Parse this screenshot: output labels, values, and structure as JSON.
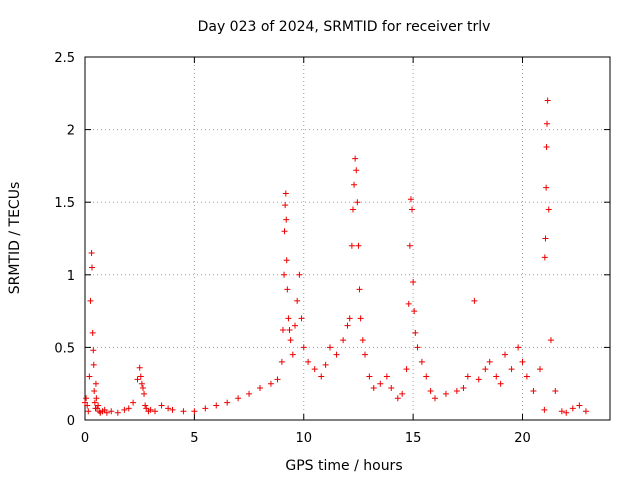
{
  "chart_data": {
    "type": "scatter",
    "title": "Day 023 of 2024, SRMTID for receiver trlv",
    "xlabel": "GPS time / hours",
    "ylabel": "SRMTID / TECUs",
    "xlim": [
      0,
      24
    ],
    "ylim": [
      0,
      2.5
    ],
    "xticks": [
      0,
      5,
      10,
      15,
      20
    ],
    "xtick_labels": [
      "0",
      "5",
      "10",
      "15",
      "20"
    ],
    "yticks": [
      0,
      0.5,
      1,
      1.5,
      2,
      2.5
    ],
    "ytick_labels": [
      "0",
      "0.5",
      "1",
      "1.5",
      "2",
      "2.5"
    ],
    "grid": true,
    "marker": "+",
    "color": "#ee0000",
    "series": [
      {
        "name": "SRMTID",
        "x": [
          0.0,
          0.05,
          0.1,
          0.15,
          0.2,
          0.25,
          0.3,
          0.32,
          0.35,
          0.38,
          0.4,
          0.42,
          0.45,
          0.48,
          0.5,
          0.52,
          0.55,
          0.6,
          0.65,
          0.7,
          0.8,
          0.9,
          1.0,
          1.2,
          1.5,
          1.8,
          2.0,
          2.2,
          2.4,
          2.5,
          2.55,
          2.6,
          2.65,
          2.7,
          2.75,
          2.8,
          2.9,
          3.0,
          3.2,
          3.5,
          3.8,
          4.0,
          4.5,
          5.0,
          5.5,
          6.0,
          6.5,
          7.0,
          7.5,
          8.0,
          8.5,
          8.8,
          9.0,
          9.05,
          9.1,
          9.12,
          9.15,
          9.18,
          9.2,
          9.22,
          9.25,
          9.3,
          9.35,
          9.4,
          9.5,
          9.6,
          9.7,
          9.8,
          9.9,
          10.0,
          10.2,
          10.5,
          10.8,
          11.0,
          11.2,
          11.5,
          11.8,
          12.0,
          12.1,
          12.2,
          12.25,
          12.3,
          12.35,
          12.4,
          12.45,
          12.5,
          12.55,
          12.6,
          12.7,
          12.8,
          13.0,
          13.2,
          13.5,
          13.8,
          14.0,
          14.3,
          14.5,
          14.7,
          14.8,
          14.85,
          14.9,
          14.95,
          15.0,
          15.05,
          15.1,
          15.2,
          15.4,
          15.6,
          15.8,
          16.0,
          16.5,
          17.0,
          17.3,
          17.5,
          17.8,
          18.0,
          18.3,
          18.5,
          18.8,
          19.0,
          19.2,
          19.5,
          19.8,
          20.0,
          20.2,
          20.5,
          20.8,
          21.0,
          21.02,
          21.05,
          21.08,
          21.1,
          21.12,
          21.15,
          21.2,
          21.3,
          21.5,
          21.8,
          22.0,
          22.3,
          22.6,
          22.9
        ],
        "y": [
          0.12,
          0.15,
          0.1,
          0.06,
          0.3,
          0.82,
          1.15,
          1.05,
          0.6,
          0.48,
          0.38,
          0.2,
          0.12,
          0.08,
          0.25,
          0.15,
          0.08,
          0.1,
          0.06,
          0.05,
          0.06,
          0.07,
          0.05,
          0.06,
          0.05,
          0.07,
          0.08,
          0.12,
          0.28,
          0.36,
          0.3,
          0.25,
          0.22,
          0.18,
          0.1,
          0.08,
          0.06,
          0.07,
          0.06,
          0.1,
          0.08,
          0.07,
          0.06,
          0.06,
          0.08,
          0.1,
          0.12,
          0.15,
          0.18,
          0.22,
          0.25,
          0.28,
          0.4,
          0.62,
          1.0,
          1.3,
          1.48,
          1.56,
          1.38,
          1.1,
          0.9,
          0.7,
          0.62,
          0.55,
          0.45,
          0.65,
          0.82,
          1.0,
          0.7,
          0.5,
          0.4,
          0.35,
          0.3,
          0.38,
          0.5,
          0.45,
          0.55,
          0.65,
          0.7,
          1.2,
          1.45,
          1.62,
          1.8,
          1.72,
          1.5,
          1.2,
          0.9,
          0.7,
          0.55,
          0.45,
          0.3,
          0.22,
          0.25,
          0.3,
          0.22,
          0.15,
          0.18,
          0.35,
          0.8,
          1.2,
          1.52,
          1.45,
          0.95,
          0.75,
          0.6,
          0.5,
          0.4,
          0.3,
          0.2,
          0.15,
          0.18,
          0.2,
          0.22,
          0.3,
          0.82,
          0.28,
          0.35,
          0.4,
          0.3,
          0.25,
          0.45,
          0.35,
          0.5,
          0.4,
          0.3,
          0.2,
          0.35,
          0.07,
          1.12,
          1.25,
          1.6,
          1.88,
          2.04,
          2.2,
          1.45,
          0.55,
          0.2,
          0.06,
          0.05,
          0.08,
          0.1,
          0.06
        ]
      }
    ]
  }
}
